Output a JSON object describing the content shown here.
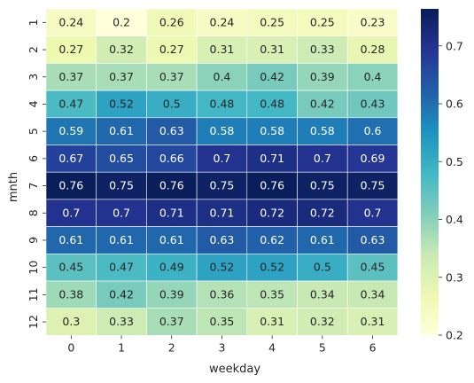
{
  "chart_data": {
    "type": "heatmap",
    "xlabel": "weekday",
    "ylabel": "mnth",
    "x": [
      "0",
      "1",
      "2",
      "3",
      "4",
      "5",
      "6"
    ],
    "y": [
      "1",
      "2",
      "3",
      "4",
      "5",
      "6",
      "7",
      "8",
      "9",
      "10",
      "11",
      "12"
    ],
    "values": [
      [
        0.24,
        0.2,
        0.26,
        0.24,
        0.25,
        0.25,
        0.23
      ],
      [
        0.27,
        0.32,
        0.27,
        0.31,
        0.31,
        0.33,
        0.28
      ],
      [
        0.37,
        0.37,
        0.37,
        0.4,
        0.42,
        0.39,
        0.4
      ],
      [
        0.47,
        0.52,
        0.5,
        0.48,
        0.48,
        0.42,
        0.43
      ],
      [
        0.59,
        0.61,
        0.63,
        0.58,
        0.58,
        0.58,
        0.6
      ],
      [
        0.67,
        0.65,
        0.66,
        0.7,
        0.71,
        0.7,
        0.69
      ],
      [
        0.76,
        0.75,
        0.76,
        0.75,
        0.76,
        0.75,
        0.75
      ],
      [
        0.7,
        0.7,
        0.71,
        0.71,
        0.72,
        0.72,
        0.7
      ],
      [
        0.61,
        0.61,
        0.61,
        0.63,
        0.62,
        0.61,
        0.63
      ],
      [
        0.45,
        0.47,
        0.49,
        0.52,
        0.52,
        0.5,
        0.45
      ],
      [
        0.38,
        0.42,
        0.39,
        0.36,
        0.35,
        0.34,
        0.34
      ],
      [
        0.3,
        0.33,
        0.37,
        0.35,
        0.31,
        0.32,
        0.31
      ]
    ],
    "colormap": "YlGnBu",
    "colorbar": {
      "range": [
        0.2,
        0.764
      ],
      "ticks": [
        "0.2",
        "0.3",
        "0.4",
        "0.5",
        "0.6",
        "0.7"
      ]
    },
    "annotations": true,
    "cell_border_color": "#ffffff"
  }
}
